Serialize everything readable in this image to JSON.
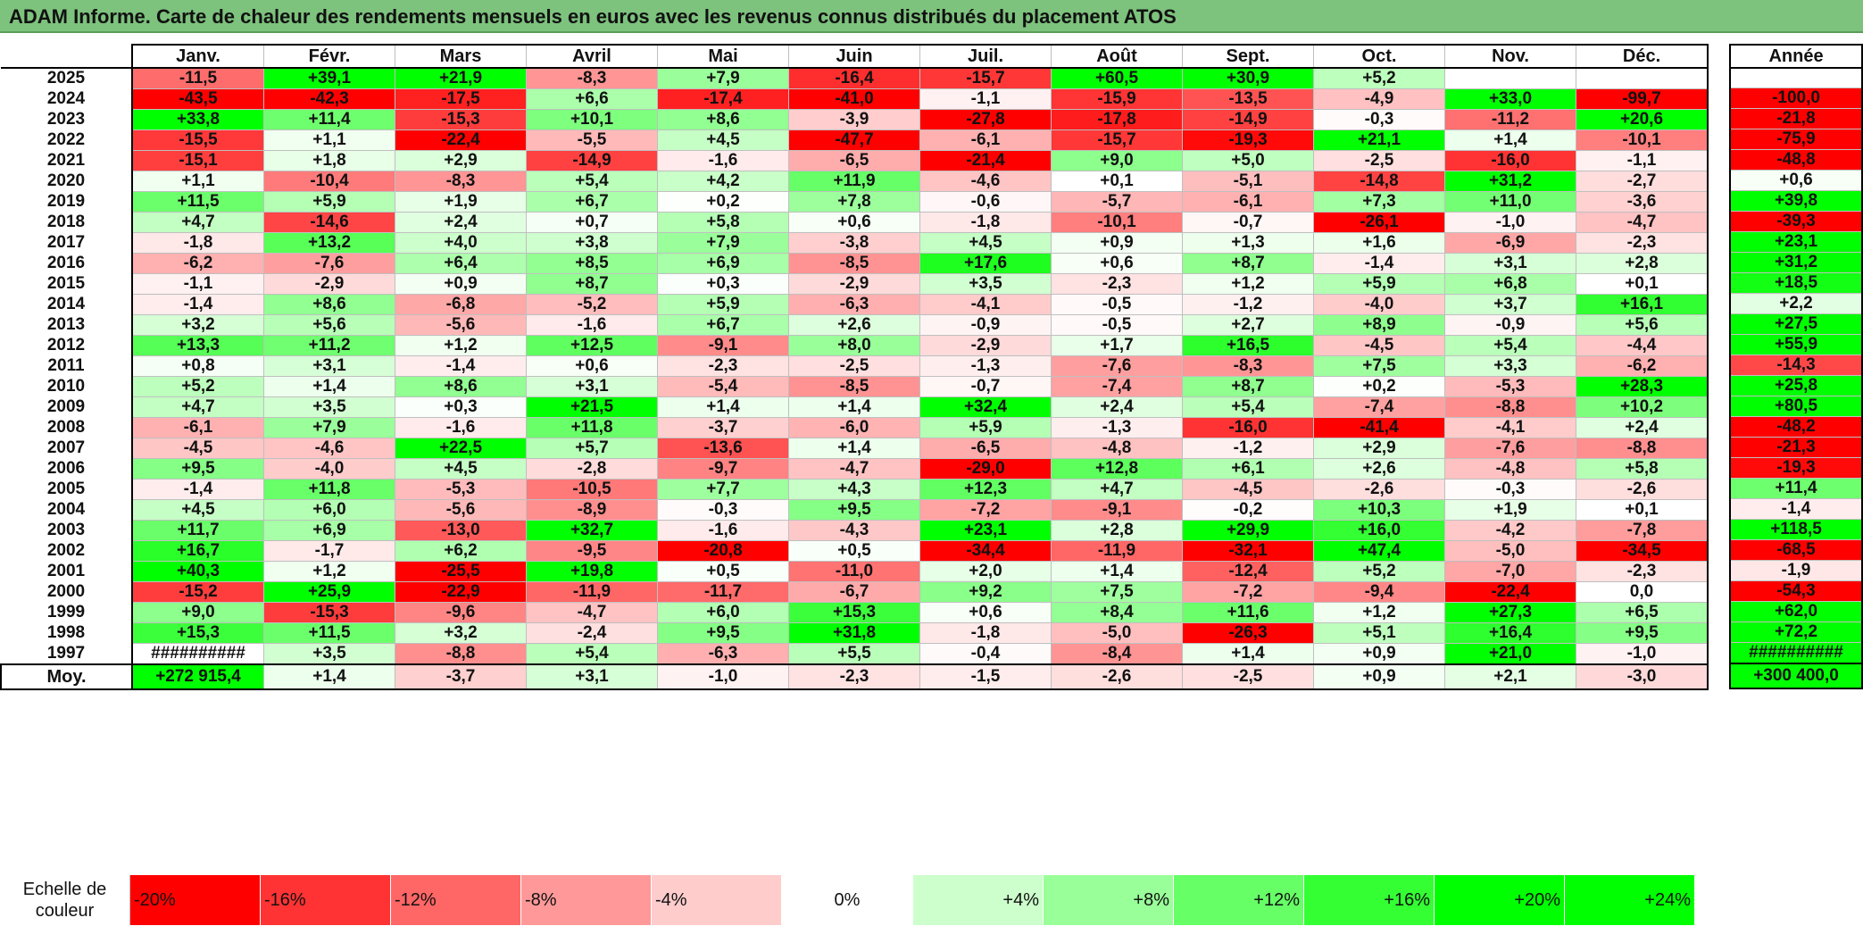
{
  "title": "ADAM Informe. Carte de chaleur des rendements mensuels en euros avec les revenus connus distribués du placement ATOS",
  "months": [
    "Janv.",
    "Févr.",
    "Mars",
    "Avril",
    "Mai",
    "Juin",
    "Juil.",
    "Août",
    "Sept.",
    "Oct.",
    "Nov.",
    "Déc."
  ],
  "year_header": "Année",
  "rows": [
    {
      "year": "2025",
      "m": [
        "-11,5",
        "+39,1",
        "+21,9",
        "-8,3",
        "+7,9",
        "-16,4",
        "-15,7",
        "+60,5",
        "+30,9",
        "+5,2",
        "",
        ""
      ],
      "total": ""
    },
    {
      "year": "2024",
      "m": [
        "-43,5",
        "-42,3",
        "-17,5",
        "+6,6",
        "-17,4",
        "-41,0",
        "-1,1",
        "-15,9",
        "-13,5",
        "-4,9",
        "+33,0",
        "-99,7"
      ],
      "total": "-100,0"
    },
    {
      "year": "2023",
      "m": [
        "+33,8",
        "+11,4",
        "-15,3",
        "+10,1",
        "+8,6",
        "-3,9",
        "-27,8",
        "-17,8",
        "-14,9",
        "-0,3",
        "-11,2",
        "+20,6"
      ],
      "total": "-21,8"
    },
    {
      "year": "2022",
      "m": [
        "-15,5",
        "+1,1",
        "-22,4",
        "-5,5",
        "+4,5",
        "-47,7",
        "-6,1",
        "-15,7",
        "-19,3",
        "+21,1",
        "+1,4",
        "-10,1"
      ],
      "total": "-75,9"
    },
    {
      "year": "2021",
      "m": [
        "-15,1",
        "+1,8",
        "+2,9",
        "-14,9",
        "-1,6",
        "-6,5",
        "-21,4",
        "+9,0",
        "+5,0",
        "-2,5",
        "-16,0",
        "-1,1"
      ],
      "total": "-48,8"
    },
    {
      "year": "2020",
      "m": [
        "+1,1",
        "-10,4",
        "-8,3",
        "+5,4",
        "+4,2",
        "+11,9",
        "-4,6",
        "+0,1",
        "-5,1",
        "-14,8",
        "+31,2",
        "-2,7"
      ],
      "total": "+0,6"
    },
    {
      "year": "2019",
      "m": [
        "+11,5",
        "+5,9",
        "+1,9",
        "+6,7",
        "+0,2",
        "+7,8",
        "-0,6",
        "-5,7",
        "-6,1",
        "+7,3",
        "+11,0",
        "-3,6"
      ],
      "total": "+39,8"
    },
    {
      "year": "2018",
      "m": [
        "+4,7",
        "-14,6",
        "+2,4",
        "+0,7",
        "+5,8",
        "+0,6",
        "-1,8",
        "-10,1",
        "-0,7",
        "-26,1",
        "-1,0",
        "-4,7"
      ],
      "total": "-39,3"
    },
    {
      "year": "2017",
      "m": [
        "-1,8",
        "+13,2",
        "+4,0",
        "+3,8",
        "+7,9",
        "-3,8",
        "+4,5",
        "+0,9",
        "+1,3",
        "+1,6",
        "-6,9",
        "-2,3"
      ],
      "total": "+23,1"
    },
    {
      "year": "2016",
      "m": [
        "-6,2",
        "-7,6",
        "+6,4",
        "+8,5",
        "+6,9",
        "-8,5",
        "+17,6",
        "+0,6",
        "+8,7",
        "-1,4",
        "+3,1",
        "+2,8"
      ],
      "total": "+31,2"
    },
    {
      "year": "2015",
      "m": [
        "-1,1",
        "-2,9",
        "+0,9",
        "+8,7",
        "+0,3",
        "-2,9",
        "+3,5",
        "-2,3",
        "+1,2",
        "+5,9",
        "+6,8",
        "+0,1"
      ],
      "total": "+18,5"
    },
    {
      "year": "2014",
      "m": [
        "-1,4",
        "+8,6",
        "-6,8",
        "-5,2",
        "+5,9",
        "-6,3",
        "-4,1",
        "-0,5",
        "-1,2",
        "-4,0",
        "+3,7",
        "+16,1"
      ],
      "total": "+2,2"
    },
    {
      "year": "2013",
      "m": [
        "+3,2",
        "+5,6",
        "-5,6",
        "-1,6",
        "+6,7",
        "+2,6",
        "-0,9",
        "-0,5",
        "+2,7",
        "+8,9",
        "-0,9",
        "+5,6"
      ],
      "total": "+27,5"
    },
    {
      "year": "2012",
      "m": [
        "+13,3",
        "+11,2",
        "+1,2",
        "+12,5",
        "-9,1",
        "+8,0",
        "-2,9",
        "+1,7",
        "+16,5",
        "-4,5",
        "+5,4",
        "-4,4"
      ],
      "total": "+55,9"
    },
    {
      "year": "2011",
      "m": [
        "+0,8",
        "+3,1",
        "-1,4",
        "+0,6",
        "-2,3",
        "-2,5",
        "-1,3",
        "-7,6",
        "-8,3",
        "+7,5",
        "+3,3",
        "-6,2"
      ],
      "total": "-14,3"
    },
    {
      "year": "2010",
      "m": [
        "+5,2",
        "+1,4",
        "+8,6",
        "+3,1",
        "-5,4",
        "-8,5",
        "-0,7",
        "-7,4",
        "+8,7",
        "+0,2",
        "-5,3",
        "+28,3"
      ],
      "total": "+25,8"
    },
    {
      "year": "2009",
      "m": [
        "+4,7",
        "+3,5",
        "+0,3",
        "+21,5",
        "+1,4",
        "+1,4",
        "+32,4",
        "+2,4",
        "+5,4",
        "-7,4",
        "-8,8",
        "+10,2"
      ],
      "total": "+80,5"
    },
    {
      "year": "2008",
      "m": [
        "-6,1",
        "+7,9",
        "-1,6",
        "+11,8",
        "-3,7",
        "-6,0",
        "+5,9",
        "-1,3",
        "-16,0",
        "-41,4",
        "-4,1",
        "+2,4"
      ],
      "total": "-48,2"
    },
    {
      "year": "2007",
      "m": [
        "-4,5",
        "-4,6",
        "+22,5",
        "+5,7",
        "-13,6",
        "+1,4",
        "-6,5",
        "-4,8",
        "-1,2",
        "+2,9",
        "-7,6",
        "-8,8"
      ],
      "total": "-21,3"
    },
    {
      "year": "2006",
      "m": [
        "+9,5",
        "-4,0",
        "+4,5",
        "-2,8",
        "-9,7",
        "-4,7",
        "-29,0",
        "+12,8",
        "+6,1",
        "+2,6",
        "-4,8",
        "+5,8"
      ],
      "total": "-19,3"
    },
    {
      "year": "2005",
      "m": [
        "-1,4",
        "+11,8",
        "-5,3",
        "-10,5",
        "+7,7",
        "+4,3",
        "+12,3",
        "+4,7",
        "-4,5",
        "-2,6",
        "-0,3",
        "-2,6"
      ],
      "total": "+11,4"
    },
    {
      "year": "2004",
      "m": [
        "+4,5",
        "+6,0",
        "-5,6",
        "-8,9",
        "-0,3",
        "+9,5",
        "-7,2",
        "-9,1",
        "-0,2",
        "+10,3",
        "+1,9",
        "+0,1"
      ],
      "total": "-1,4"
    },
    {
      "year": "2003",
      "m": [
        "+11,7",
        "+6,9",
        "-13,0",
        "+32,7",
        "-1,6",
        "-4,3",
        "+23,1",
        "+2,8",
        "+29,9",
        "+16,0",
        "-4,2",
        "-7,8"
      ],
      "total": "+118,5"
    },
    {
      "year": "2002",
      "m": [
        "+16,7",
        "-1,7",
        "+6,2",
        "-9,5",
        "-20,8",
        "+0,5",
        "-34,4",
        "-11,9",
        "-32,1",
        "+47,4",
        "-5,0",
        "-34,5"
      ],
      "total": "-68,5"
    },
    {
      "year": "2001",
      "m": [
        "+40,3",
        "+1,2",
        "-25,5",
        "+19,8",
        "+0,5",
        "-11,0",
        "+2,0",
        "+1,4",
        "-12,4",
        "+5,2",
        "-7,0",
        "-2,3"
      ],
      "total": "-1,9"
    },
    {
      "year": "2000",
      "m": [
        "-15,2",
        "+25,9",
        "-22,9",
        "-11,9",
        "-11,7",
        "-6,7",
        "+9,2",
        "+7,5",
        "-7,2",
        "-9,4",
        "-22,4",
        "0,0"
      ],
      "total": "-54,3"
    },
    {
      "year": "1999",
      "m": [
        "+9,0",
        "-15,3",
        "-9,6",
        "-4,7",
        "+6,0",
        "+15,3",
        "+0,6",
        "+8,4",
        "+11,6",
        "+1,2",
        "+27,3",
        "+6,5"
      ],
      "total": "+62,0"
    },
    {
      "year": "1998",
      "m": [
        "+15,3",
        "+11,5",
        "+3,2",
        "-2,4",
        "+9,5",
        "+31,8",
        "-1,8",
        "-5,0",
        "-26,3",
        "+5,1",
        "+16,4",
        "+9,5"
      ],
      "total": "+72,2"
    },
    {
      "year": "1997",
      "m": [
        "##########",
        "+3,5",
        "-8,8",
        "+5,4",
        "-6,3",
        "+5,5",
        "-0,4",
        "-8,4",
        "+1,4",
        "+0,9",
        "+21,0",
        "-1,0"
      ],
      "total": "##########"
    }
  ],
  "average": {
    "label": "Moy.",
    "m": [
      "+272 915,4",
      "+1,4",
      "-3,7",
      "+3,1",
      "-1,0",
      "-2,3",
      "-1,5",
      "-2,6",
      "-2,5",
      "+0,9",
      "+2,1",
      "-3,0"
    ],
    "total": "+300 400,0"
  },
  "scale": {
    "label": "Echelle de couleur",
    "items": [
      {
        "text": "-20%",
        "color": "#ff0000",
        "kind": "neg"
      },
      {
        "text": "-16%",
        "color": "#ff3333",
        "kind": "neg"
      },
      {
        "text": "-12%",
        "color": "#ff6666",
        "kind": "neg"
      },
      {
        "text": "-8%",
        "color": "#ff9999",
        "kind": "neg"
      },
      {
        "text": "-4%",
        "color": "#ffcccc",
        "kind": "neg"
      },
      {
        "text": "0%",
        "color": "#ffffff",
        "kind": "zero"
      },
      {
        "text": "+4%",
        "color": "#ccffcc",
        "kind": "pos"
      },
      {
        "text": "+8%",
        "color": "#99ff99",
        "kind": "pos"
      },
      {
        "text": "+12%",
        "color": "#66ff66",
        "kind": "pos"
      },
      {
        "text": "+16%",
        "color": "#33ff33",
        "kind": "pos"
      },
      {
        "text": "+20%",
        "color": "#00ff00",
        "kind": "pos"
      },
      {
        "text": "+24%",
        "color": "#00ff00",
        "kind": "pos"
      }
    ]
  },
  "colors": {
    "title_bar": "#7dc27d",
    "neg_max": "#ff0000",
    "pos_max": "#00ff00",
    "neutral": "#ffffff"
  }
}
